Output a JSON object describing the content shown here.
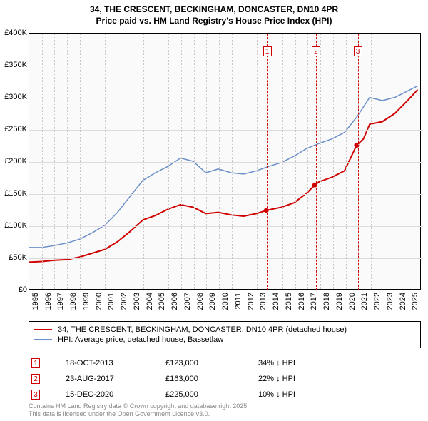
{
  "title": {
    "line1": "34, THE CRESCENT, BECKINGHAM, DONCASTER, DN10 4PR",
    "line2": "Price paid vs. HM Land Registry's House Price Index (HPI)",
    "fontsize": 12
  },
  "chart": {
    "type": "line",
    "background_color": "#fafafa",
    "grid_color": "#dcdcdc",
    "vgrid_color": "#c8c8c8",
    "border_color": "#000000",
    "x": {
      "min": 1995,
      "max": 2026,
      "ticks": [
        1995,
        1996,
        1997,
        1998,
        1999,
        2000,
        2001,
        2002,
        2003,
        2004,
        2005,
        2006,
        2007,
        2008,
        2009,
        2010,
        2011,
        2012,
        2013,
        2014,
        2015,
        2016,
        2017,
        2018,
        2019,
        2020,
        2021,
        2022,
        2023,
        2024,
        2025
      ]
    },
    "y": {
      "min": 0,
      "max": 400000,
      "ticks": [
        0,
        50000,
        100000,
        150000,
        200000,
        250000,
        300000,
        350000,
        400000
      ],
      "tick_labels": [
        "£0",
        "£50K",
        "£100K",
        "£150K",
        "£200K",
        "£250K",
        "£300K",
        "£350K",
        "£400K"
      ]
    },
    "series": [
      {
        "id": "price_paid",
        "label": "34, THE CRESCENT, BECKINGHAM, DONCASTER, DN10 4PR (detached house)",
        "color": "#d00000",
        "width": 2,
        "points": [
          [
            1995,
            42000
          ],
          [
            1996,
            43000
          ],
          [
            1997,
            45000
          ],
          [
            1998,
            46000
          ],
          [
            1999,
            50000
          ],
          [
            2000,
            56000
          ],
          [
            2001,
            62000
          ],
          [
            2002,
            74000
          ],
          [
            2003,
            90000
          ],
          [
            2004,
            108000
          ],
          [
            2005,
            115000
          ],
          [
            2006,
            125000
          ],
          [
            2007,
            132000
          ],
          [
            2008,
            128000
          ],
          [
            2009,
            118000
          ],
          [
            2010,
            120000
          ],
          [
            2011,
            116000
          ],
          [
            2012,
            114000
          ],
          [
            2013,
            118000
          ],
          [
            2013.8,
            123000
          ],
          [
            2014.5,
            126000
          ],
          [
            2015,
            128000
          ],
          [
            2016,
            135000
          ],
          [
            2017,
            150000
          ],
          [
            2017.65,
            163000
          ],
          [
            2018,
            168000
          ],
          [
            2019,
            175000
          ],
          [
            2020,
            185000
          ],
          [
            2020.96,
            225000
          ],
          [
            2021.5,
            235000
          ],
          [
            2022,
            258000
          ],
          [
            2023,
            262000
          ],
          [
            2024,
            275000
          ],
          [
            2025,
            295000
          ],
          [
            2025.8,
            312000
          ]
        ]
      },
      {
        "id": "hpi",
        "label": "HPI: Average price, detached house, Bassetlaw",
        "color": "#6b8fc9",
        "width": 1.5,
        "points": [
          [
            1995,
            65000
          ],
          [
            1996,
            65000
          ],
          [
            1997,
            68000
          ],
          [
            1998,
            72000
          ],
          [
            1999,
            78000
          ],
          [
            2000,
            88000
          ],
          [
            2001,
            100000
          ],
          [
            2002,
            120000
          ],
          [
            2003,
            145000
          ],
          [
            2004,
            170000
          ],
          [
            2005,
            182000
          ],
          [
            2006,
            192000
          ],
          [
            2007,
            205000
          ],
          [
            2008,
            200000
          ],
          [
            2009,
            182000
          ],
          [
            2010,
            188000
          ],
          [
            2011,
            182000
          ],
          [
            2012,
            180000
          ],
          [
            2013,
            185000
          ],
          [
            2014,
            192000
          ],
          [
            2015,
            198000
          ],
          [
            2016,
            208000
          ],
          [
            2017,
            220000
          ],
          [
            2018,
            228000
          ],
          [
            2019,
            235000
          ],
          [
            2020,
            245000
          ],
          [
            2021,
            270000
          ],
          [
            2022,
            300000
          ],
          [
            2023,
            295000
          ],
          [
            2024,
            300000
          ],
          [
            2025,
            310000
          ],
          [
            2025.8,
            318000
          ]
        ]
      }
    ],
    "sale_markers": [
      {
        "num": "1",
        "year": 2013.8
      },
      {
        "num": "2",
        "year": 2017.65
      },
      {
        "num": "3",
        "year": 2020.96
      }
    ],
    "marker_color": "#d00000"
  },
  "legend": {
    "items": [
      {
        "series": "price_paid"
      },
      {
        "series": "hpi"
      }
    ]
  },
  "sales_table": {
    "rows": [
      {
        "num": "1",
        "date": "18-OCT-2013",
        "price": "£123,000",
        "delta": "34% ↓ HPI"
      },
      {
        "num": "2",
        "date": "23-AUG-2017",
        "price": "£163,000",
        "delta": "22% ↓ HPI"
      },
      {
        "num": "3",
        "date": "15-DEC-2020",
        "price": "£225,000",
        "delta": "10% ↓ HPI"
      }
    ]
  },
  "footer": {
    "line1": "Contains HM Land Registry data © Crown copyright and database right 2025.",
    "line2": "This data is licensed under the Open Government Licence v3.0.",
    "color": "#888888",
    "fontsize": 9
  }
}
